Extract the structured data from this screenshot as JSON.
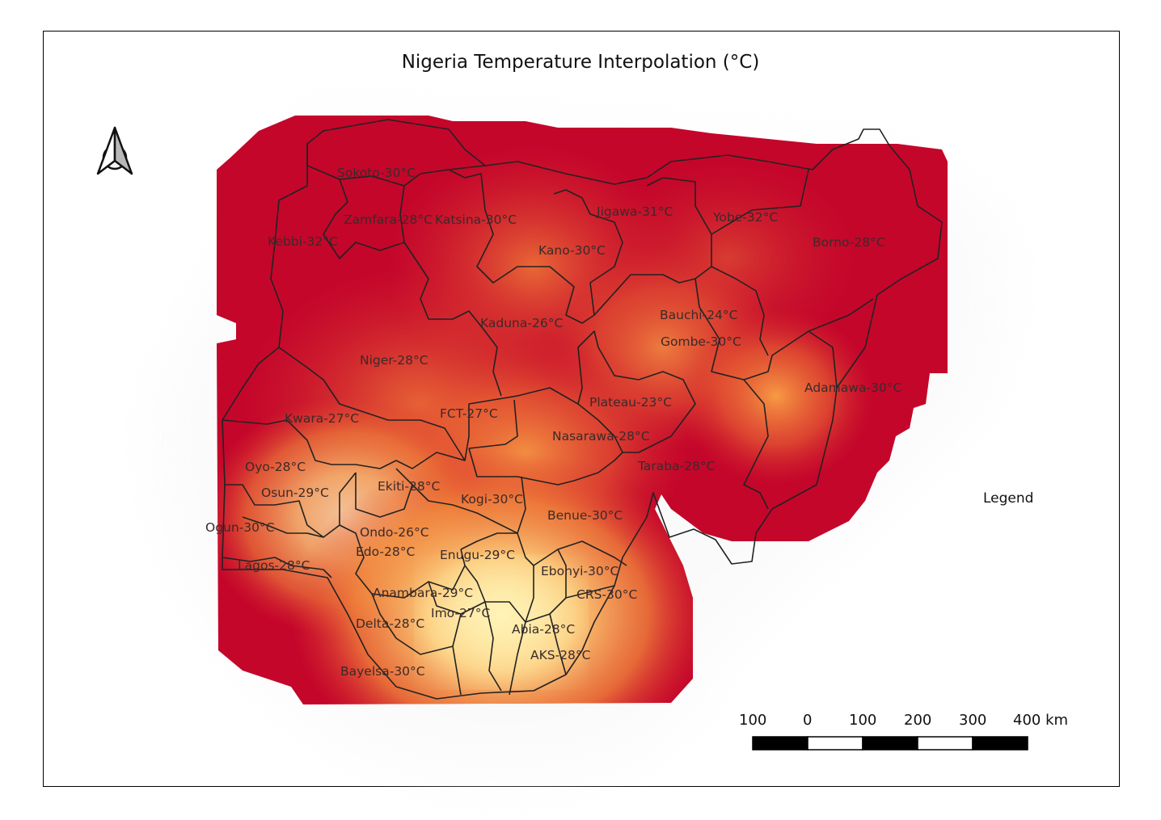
{
  "title": "Nigeria Temperature Interpolation (°C)",
  "legend": {
    "title": "Legend"
  },
  "north_arrow": {
    "icon": "north-arrow-icon"
  },
  "scale_bar": {
    "labels": [
      "100",
      "0",
      "100",
      "200",
      "300",
      "400 km"
    ],
    "segment_colors": [
      "#000000",
      "#ffffff",
      "#000000",
      "#ffffff",
      "#000000"
    ]
  },
  "colors": {
    "hot": "#c4062b",
    "mid": "#f5883a",
    "cool": "#fff0b0",
    "boundary": "#222222"
  },
  "states": [
    {
      "name": "Sokoto",
      "temp": 30,
      "label": "Sokoto-30°C"
    },
    {
      "name": "Zamfara",
      "temp": 28,
      "label": "Zamfara-28°C"
    },
    {
      "name": "Katsina",
      "temp": 30,
      "label": "Katsina-30°C"
    },
    {
      "name": "Jigawa",
      "temp": 31,
      "label": "Jigawa-31°C"
    },
    {
      "name": "Yobe",
      "temp": 32,
      "label": "Yobe-32°C"
    },
    {
      "name": "Borno",
      "temp": 28,
      "label": "Borno-28°C"
    },
    {
      "name": "Kebbi",
      "temp": 32,
      "label": "Kebbi-32°C"
    },
    {
      "name": "Kano",
      "temp": 30,
      "label": "Kano-30°C"
    },
    {
      "name": "Bauchi",
      "temp": 24,
      "label": "Bauchi-24°C"
    },
    {
      "name": "Kaduna",
      "temp": 26,
      "label": "Kaduna-26°C"
    },
    {
      "name": "Gombe",
      "temp": 30,
      "label": "Gombe-30°C"
    },
    {
      "name": "Niger",
      "temp": 28,
      "label": "Niger-28°C"
    },
    {
      "name": "Adamawa",
      "temp": 30,
      "label": "Adamawa-30°C"
    },
    {
      "name": "Plateau",
      "temp": 23,
      "label": "Plateau-23°C"
    },
    {
      "name": "FCT",
      "temp": 27,
      "label": "FCT-27°C"
    },
    {
      "name": "Kwara",
      "temp": 27,
      "label": "Kwara-27°C"
    },
    {
      "name": "Nasarawa",
      "temp": 28,
      "label": "Nasarawa-28°C"
    },
    {
      "name": "Oyo",
      "temp": 28,
      "label": "Oyo-28°C"
    },
    {
      "name": "Taraba",
      "temp": 28,
      "label": "Taraba-28°C"
    },
    {
      "name": "Ekiti",
      "temp": 28,
      "label": "Ekiti-28°C"
    },
    {
      "name": "Osun",
      "temp": 29,
      "label": "Osun-29°C"
    },
    {
      "name": "Kogi",
      "temp": 30,
      "label": "Kogi-30°C"
    },
    {
      "name": "Benue",
      "temp": 30,
      "label": "Benue-30°C"
    },
    {
      "name": "Ogun",
      "temp": 30,
      "label": "Ogun-30°C"
    },
    {
      "name": "Ondo",
      "temp": 26,
      "label": "Ondo-26°C"
    },
    {
      "name": "Edo",
      "temp": 28,
      "label": "Edo-28°C"
    },
    {
      "name": "Enugu",
      "temp": 29,
      "label": "Enugu-29°C"
    },
    {
      "name": "Lagos",
      "temp": 28,
      "label": "Lagos-28°C"
    },
    {
      "name": "Ebonyi",
      "temp": 30,
      "label": "Ebonyi-30°C"
    },
    {
      "name": "Anambara",
      "temp": 29,
      "label": "Anambara-29°C"
    },
    {
      "name": "CRS",
      "temp": 30,
      "label": "CRS-30°C"
    },
    {
      "name": "Imo",
      "temp": 27,
      "label": "Imo-27°C"
    },
    {
      "name": "Delta",
      "temp": 28,
      "label": "Delta-28°C"
    },
    {
      "name": "Abia",
      "temp": 28,
      "label": "Abia-28°C"
    },
    {
      "name": "AKS",
      "temp": 28,
      "label": "AKS-28°C"
    },
    {
      "name": "Bayelsa",
      "temp": 30,
      "label": "Bayelsa-30°C"
    }
  ]
}
